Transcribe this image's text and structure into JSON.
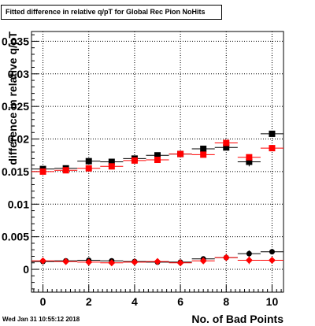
{
  "title": "Fitted difference in relative q/pT for Global Rec Pion NoHits",
  "timestamp": "Wed Jan 31 10:55:12 2018",
  "chart_data": {
    "type": "scatter",
    "title": "Fitted difference in relative q/pT for Global Rec Pion NoHits",
    "xlabel": "No. of Bad Points",
    "ylabel": "difference in relative q/pT",
    "xlim": [
      -0.5,
      10.5
    ],
    "ylim": [
      -0.0035,
      0.0365
    ],
    "xticks": [
      0,
      2,
      4,
      6,
      8,
      10
    ],
    "xtick_labels": [
      "0",
      "2",
      "4",
      "6",
      "8",
      "10"
    ],
    "yticks": [
      0,
      0.005,
      0.01,
      0.015,
      0.02,
      0.025,
      0.03,
      0.035
    ],
    "ytick_labels": [
      "0",
      "0.005",
      "0.01",
      "0.015",
      "0.02",
      "0.025",
      "0.03",
      "0.035"
    ],
    "grid": true,
    "colors": {
      "black": "#000000",
      "red": "#ff0000"
    },
    "series": [
      {
        "marker": "square",
        "color": "#000000",
        "x": [
          0,
          1,
          2,
          3,
          4,
          5,
          6,
          7,
          8,
          9,
          10
        ],
        "y": [
          0.0154,
          0.0155,
          0.0166,
          0.0165,
          0.017,
          0.0175,
          0.0177,
          0.0185,
          0.0187,
          0.0165,
          0.0208
        ],
        "yerr": [
          0.0002,
          0.0002,
          0.0003,
          0.0003,
          0.0002,
          0.0002,
          0.0002,
          0.0003,
          0.0004,
          0.0007,
          0.0003
        ]
      },
      {
        "marker": "square",
        "color": "#ff0000",
        "x": [
          0,
          1,
          2,
          3,
          4,
          5,
          6,
          7,
          8,
          9,
          10
        ],
        "y": [
          0.015,
          0.0152,
          0.0155,
          0.0158,
          0.0167,
          0.0168,
          0.0177,
          0.0176,
          0.0194,
          0.0172,
          0.0186
        ],
        "yerr": [
          0.0002,
          0.0002,
          0.0002,
          0.0002,
          0.0002,
          0.0002,
          0.0002,
          0.0002,
          0.0003,
          0.0004,
          0.0003
        ]
      },
      {
        "marker": "circle",
        "color": "#000000",
        "x": [
          0,
          1,
          2,
          3,
          4,
          5,
          6,
          7,
          8,
          9,
          10
        ],
        "y": [
          0.0012,
          0.0013,
          0.0014,
          0.0013,
          0.0012,
          0.0011,
          0.0011,
          0.0016,
          0.0018,
          0.0024,
          0.0027
        ],
        "yerr": [
          0.0002,
          0.0002,
          0.0002,
          0.0002,
          0.0002,
          0.0002,
          0.0002,
          0.0002,
          0.0003,
          0.0005,
          0.0003
        ]
      },
      {
        "marker": "diamond",
        "color": "#ff0000",
        "x": [
          0,
          1,
          2,
          3,
          4,
          5,
          6,
          7,
          8,
          9,
          10
        ],
        "y": [
          0.0013,
          0.0012,
          0.0011,
          0.001,
          0.0011,
          0.0012,
          0.001,
          0.0013,
          0.0018,
          0.0014,
          0.0014
        ],
        "yerr": [
          0.0002,
          0.0002,
          0.0002,
          0.0002,
          0.0002,
          0.0002,
          0.0002,
          0.0002,
          0.0003,
          0.0006,
          0.0003
        ]
      }
    ]
  }
}
